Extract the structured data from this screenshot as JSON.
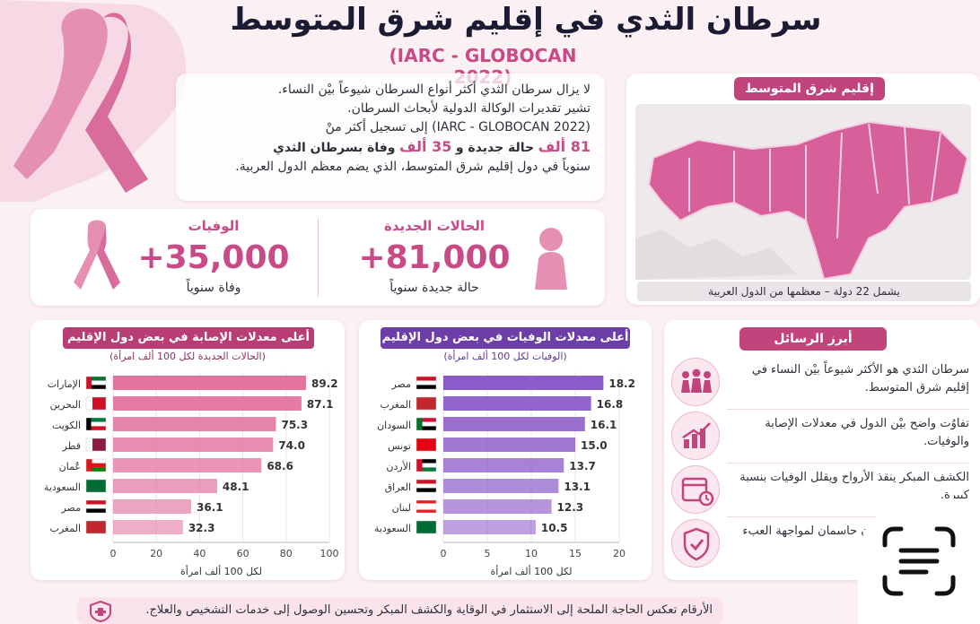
{
  "title": "سرطان الثدي في إقليم شرق المتوسط",
  "subtitle": "(IARC - GLOBOCAN 2022)",
  "intro": {
    "line1": "لا يزال سرطان الثدي أكثر أنواع السرطان شيوعاً بيْن النساء.",
    "line2": "تشير تقديرات الوكالة الدولية لأبحاث السرطان.",
    "line3": "(IARC - GLOBOCAN 2022) إلى تسجيل أكثر منْ",
    "cases_num": "81 ألف",
    "cases_word": "حالة جديدة و",
    "deaths_num": "35 ألف",
    "deaths_word": "وفاة بسرطان الثدي",
    "line5": "سنوياً في دول إقليم شرق المتوسط، الذي يضم معظم الدول العربية."
  },
  "map": {
    "label": "إقليم شرق المتوسط",
    "footer": "يشمل 22 دولة – معظمها من الدول العربية",
    "colors": {
      "region": "#d8609a",
      "outline": "#f3cfe0",
      "other": "#eeeaec"
    }
  },
  "stats": {
    "new_cases": {
      "heading": "الحالات الجديدة",
      "value": "+81,000",
      "caption": "حالة جديدة سنوياً",
      "icon": "woman-icon"
    },
    "deaths": {
      "heading": "الوفيات",
      "value": "+35,000",
      "caption": "وفاة سنوياً",
      "icon": "ribbon-icon"
    }
  },
  "chart_data": [
    {
      "type": "bar",
      "title": "أعلى معدلات الإصابة في بعض دول الإقليم",
      "subtitle": "(الحالات الجديدة لكل 100 ألف امرأة)",
      "categories": [
        "الإمارات",
        "البحرين",
        "الكويت",
        "قطر",
        "عُمان",
        "السعودية",
        "مصر",
        "المغرب"
      ],
      "values": [
        89.2,
        87.1,
        75.3,
        74.0,
        68.6,
        48.1,
        36.1,
        32.3
      ],
      "value_labels": [
        "89.2",
        "87.1",
        "75.3",
        "74.0",
        "68.6",
        "48.1",
        "36.1",
        "32.3"
      ],
      "xlabel": "لكل 100 ألف امرأة",
      "xlim": [
        0,
        100
      ],
      "ticks": [
        "0",
        "20",
        "40",
        "60",
        "80",
        "100"
      ],
      "color": "#e3739f",
      "flags": [
        "uae",
        "bahrain",
        "kuwait",
        "qatar",
        "oman",
        "saudi",
        "egypt",
        "morocco"
      ]
    },
    {
      "type": "bar",
      "title": "أعلى معدلات الوفيات في بعض دول الإقليم",
      "subtitle": "(الوفيات لكل 100 ألف امرأة)",
      "categories": [
        "مصر",
        "المغرب",
        "السودان",
        "تونس",
        "الأردن",
        "العراق",
        "لبنان",
        "السعودية"
      ],
      "values": [
        18.2,
        16.8,
        16.1,
        15.0,
        13.7,
        13.1,
        12.3,
        10.5
      ],
      "value_labels": [
        "18.2",
        "16.8",
        "16.1",
        "15.0",
        "13.7",
        "13.1",
        "12.3",
        "10.5"
      ],
      "xlabel": "لكل 100 ألف امرأة",
      "xlim": [
        0,
        20
      ],
      "ticks": [
        "0",
        "5",
        "10",
        "15",
        "20"
      ],
      "color": "#8b5bc9",
      "flags": [
        "egypt",
        "morocco",
        "sudan",
        "tunisia",
        "jordan",
        "iraq",
        "lebanon",
        "saudi"
      ]
    }
  ],
  "messages": {
    "title": "أبرز الرسائل",
    "items": [
      {
        "text": "سرطان الثدي هو الأكثر شيوعاً بيْن النساء في إقليم شرق المتوسط.",
        "icon": "women-group-icon"
      },
      {
        "text": "تفاوُت واضح بيْن الدول في معدلات الإصابة والوفيات.",
        "icon": "bar-chart-icon"
      },
      {
        "text": "الكشف المبكر ينقذ الأرواح ويقلل الوفيات بنسبة كبيرة.",
        "icon": "calendar-icon"
      },
      {
        "text": "الفحص والتوعية أمران حاسمان لمواجهة العبء الصحي المتزايد.",
        "icon": "shield-check-icon"
      }
    ]
  },
  "footer": "الأرقام تعكس الحاجة الملحة إلى الاستثمار في الوقاية والكشف المبكر وتحسين الوصول إلى خدمات التشخيص والعلاج."
}
